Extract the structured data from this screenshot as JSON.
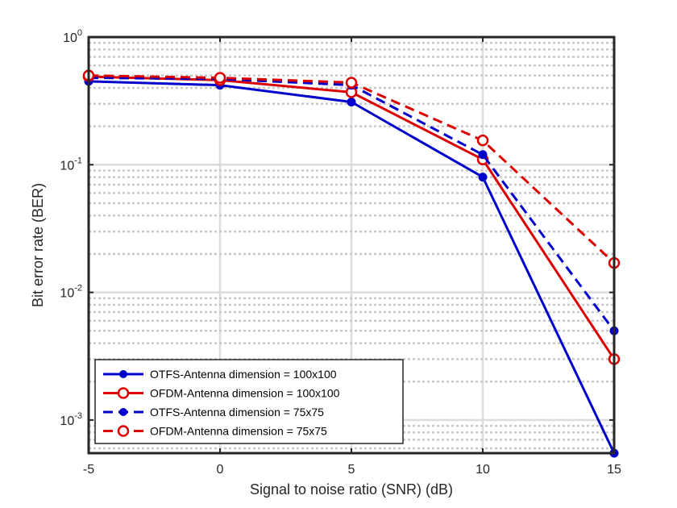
{
  "chart_data": {
    "type": "line",
    "title": "",
    "xlabel": "Signal to noise ratio (SNR) (dB)",
    "ylabel": "Bit error rate (BER)",
    "xlim": [
      -5,
      15
    ],
    "ylim": [
      0.00055,
      1
    ],
    "yscale": "log",
    "grid": true,
    "x_ticks": [
      -5,
      0,
      5,
      10,
      15
    ],
    "x_tick_labels": [
      "-5",
      "0",
      "5",
      "10",
      "15"
    ],
    "y_ticks": [
      {
        "value": 1,
        "base": "10",
        "exp": "0"
      },
      {
        "value": 0.1,
        "base": "10",
        "exp": "-1"
      },
      {
        "value": 0.01,
        "base": "10",
        "exp": "-2"
      },
      {
        "value": 0.001,
        "base": "10",
        "exp": "-3"
      }
    ],
    "legend_position": "bottom-left",
    "x": [
      -5,
      0,
      5,
      10,
      15
    ],
    "series": [
      {
        "name": "OTFS-Antenna dimension = 100x100",
        "color": "#0000cc",
        "dash": false,
        "marker": "filled",
        "values": [
          0.45,
          0.42,
          0.31,
          0.08,
          0.00055
        ]
      },
      {
        "name": "OFDM-Antenna dimension = 100x100",
        "color": "#dd0000",
        "dash": false,
        "marker": "open",
        "values": [
          0.49,
          0.46,
          0.37,
          0.11,
          0.003
        ]
      },
      {
        "name": "OTFS-Antenna dimension = 75x75",
        "color": "#0000cc",
        "dash": true,
        "marker": "filled",
        "values": [
          0.48,
          0.47,
          0.42,
          0.12,
          0.005
        ]
      },
      {
        "name": "OFDM-Antenna dimension = 75x75",
        "color": "#dd0000",
        "dash": true,
        "marker": "open",
        "values": [
          0.5,
          0.48,
          0.44,
          0.155,
          0.017
        ]
      }
    ]
  }
}
